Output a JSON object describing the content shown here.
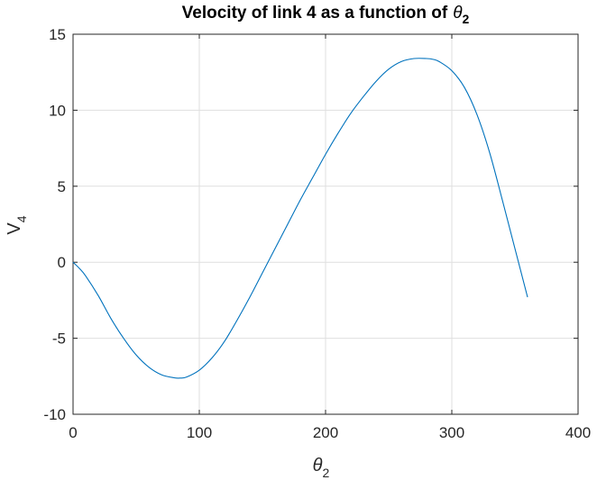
{
  "chart_data": {
    "type": "line",
    "title": "Velocity of link 4 as a function of",
    "title_symbol": "θ",
    "title_symbol_sub": "2",
    "xlabel_symbol": "θ",
    "xlabel_sub": "2",
    "ylabel_main": "V",
    "ylabel_sub": "4",
    "xlim": [
      0,
      400
    ],
    "ylim": [
      -10,
      15
    ],
    "xticks": [
      0,
      100,
      200,
      300,
      400
    ],
    "yticks": [
      -10,
      -5,
      0,
      5,
      10,
      15
    ],
    "xtick_labels": [
      "0",
      "100",
      "200",
      "300",
      "400"
    ],
    "ytick_labels": [
      "-10",
      "-5",
      "0",
      "5",
      "10",
      "15"
    ],
    "grid": true,
    "colors": {
      "series": "#0072bd"
    },
    "series": [
      {
        "x": [
          0,
          5,
          10,
          20,
          30,
          40,
          50,
          60,
          70,
          80,
          85,
          90,
          100,
          110,
          120,
          130,
          140,
          150,
          160,
          170,
          180,
          190,
          200,
          210,
          220,
          230,
          240,
          250,
          260,
          270,
          280,
          285,
          290,
          300,
          310,
          320,
          330,
          340,
          350,
          360
        ],
        "y": [
          0,
          -0.4,
          -0.9,
          -2.2,
          -3.7,
          -5.0,
          -6.1,
          -6.9,
          -7.4,
          -7.6,
          -7.62,
          -7.55,
          -7.1,
          -6.3,
          -5.2,
          -3.8,
          -2.3,
          -0.7,
          0.9,
          2.5,
          4.1,
          5.6,
          7.1,
          8.5,
          9.8,
          10.9,
          11.9,
          12.7,
          13.2,
          13.4,
          13.4,
          13.35,
          13.2,
          12.6,
          11.5,
          9.7,
          7.2,
          4.1,
          0.9,
          -2.3
        ]
      }
    ]
  }
}
